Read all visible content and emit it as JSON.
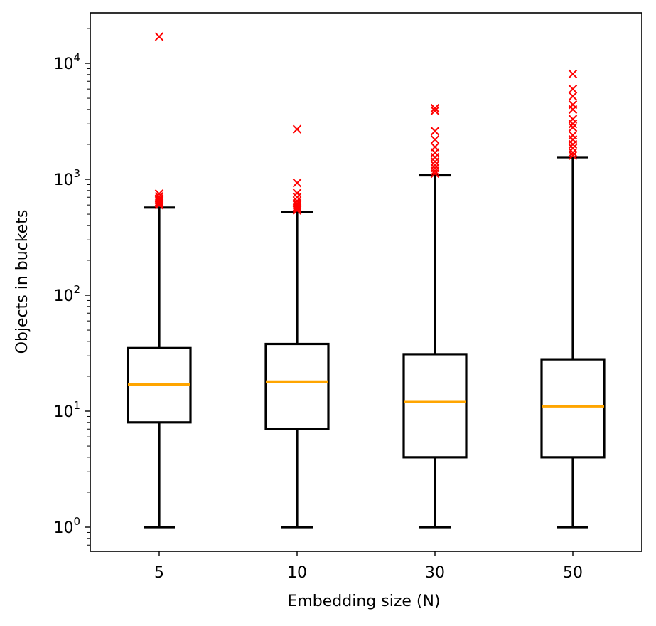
{
  "chart_data": {
    "type": "box",
    "title": "",
    "xlabel": "Embedding size (N)",
    "ylabel": "Objects in buckets",
    "yscale": "log",
    "ylim": [
      0.62,
      27000
    ],
    "categories": [
      "5",
      "10",
      "30",
      "50"
    ],
    "y_ticks": [
      {
        "value": 1,
        "base": "10",
        "exp": "0"
      },
      {
        "value": 10,
        "base": "10",
        "exp": "1"
      },
      {
        "value": 100,
        "base": "10",
        "exp": "2"
      },
      {
        "value": 1000,
        "base": "10",
        "exp": "3"
      },
      {
        "value": 10000,
        "base": "10",
        "exp": "4"
      }
    ],
    "boxes": [
      {
        "label": "5",
        "whisker_low": 1,
        "q1": 8,
        "median": 17,
        "q3": 35,
        "whisker_high": 570,
        "outliers": [
          600,
          620,
          640,
          660,
          680,
          710,
          750,
          17000
        ]
      },
      {
        "label": "10",
        "whisker_low": 1,
        "q1": 7,
        "median": 18,
        "q3": 38,
        "whisker_high": 520,
        "outliers": [
          540,
          560,
          580,
          600,
          620,
          650,
          700,
          760,
          930,
          2700
        ]
      },
      {
        "label": "30",
        "whisker_low": 1,
        "q1": 4,
        "median": 12,
        "q3": 31,
        "whisker_high": 1080,
        "outliers": [
          1120,
          1180,
          1250,
          1320,
          1420,
          1550,
          1700,
          1900,
          2200,
          2600,
          3900,
          4100
        ]
      },
      {
        "label": "50",
        "whisker_low": 1,
        "q1": 4,
        "median": 11,
        "q3": 28,
        "whisker_high": 1550,
        "outliers": [
          1600,
          1700,
          1850,
          2000,
          2200,
          2400,
          2800,
          3000,
          3300,
          4000,
          4400,
          5200,
          6000,
          8100
        ]
      }
    ],
    "colors": {
      "box": "#000000",
      "median": "#ffa500",
      "outlier": "#ff0000"
    }
  }
}
